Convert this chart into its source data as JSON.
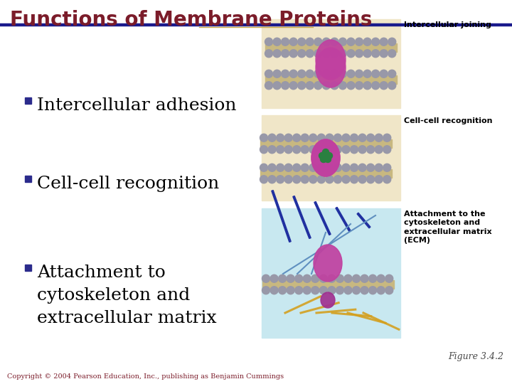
{
  "title": "Functions of Membrane Proteins",
  "title_color": "#7B1C2A",
  "title_fontsize": 20,
  "divider_color_top": "#1a1a8c",
  "divider_color_bottom": "#c8a84b",
  "bullet_color": "#2b2b8c",
  "bullet_items": [
    "Intercellular adhesion",
    "Cell-cell recognition",
    "Attachment to\ncytoskeleton and\nextracellular matrix"
  ],
  "bullet_fontsize": 18,
  "text_color": "#000000",
  "bg_color": "#ffffff",
  "figure_label": "Figure 3.4.2",
  "figure_label_color": "#4a4a4a",
  "figure_label_fontsize": 9,
  "copyright_text": "Copyright © 2004 Pearson Education, Inc., publishing as Benjamin Cummings",
  "copyright_color": "#7B1C2A",
  "copyright_fontsize": 7,
  "panel_bg": "#f0e6c8",
  "panel_bg_blue": "#c8e8f0",
  "membrane_head_color": "#a0a0a8",
  "membrane_tail_color": "#d0c8b0",
  "protein_color": "#c040a0",
  "green_color": "#2a8040",
  "label_font": 8,
  "panel1_label": "Intercellular joining",
  "panel2_label": "Cell-cell recognition",
  "panel3_label": "Attachment to the\ncytoskeleton and\nextracellular matrix\n(ECM)"
}
